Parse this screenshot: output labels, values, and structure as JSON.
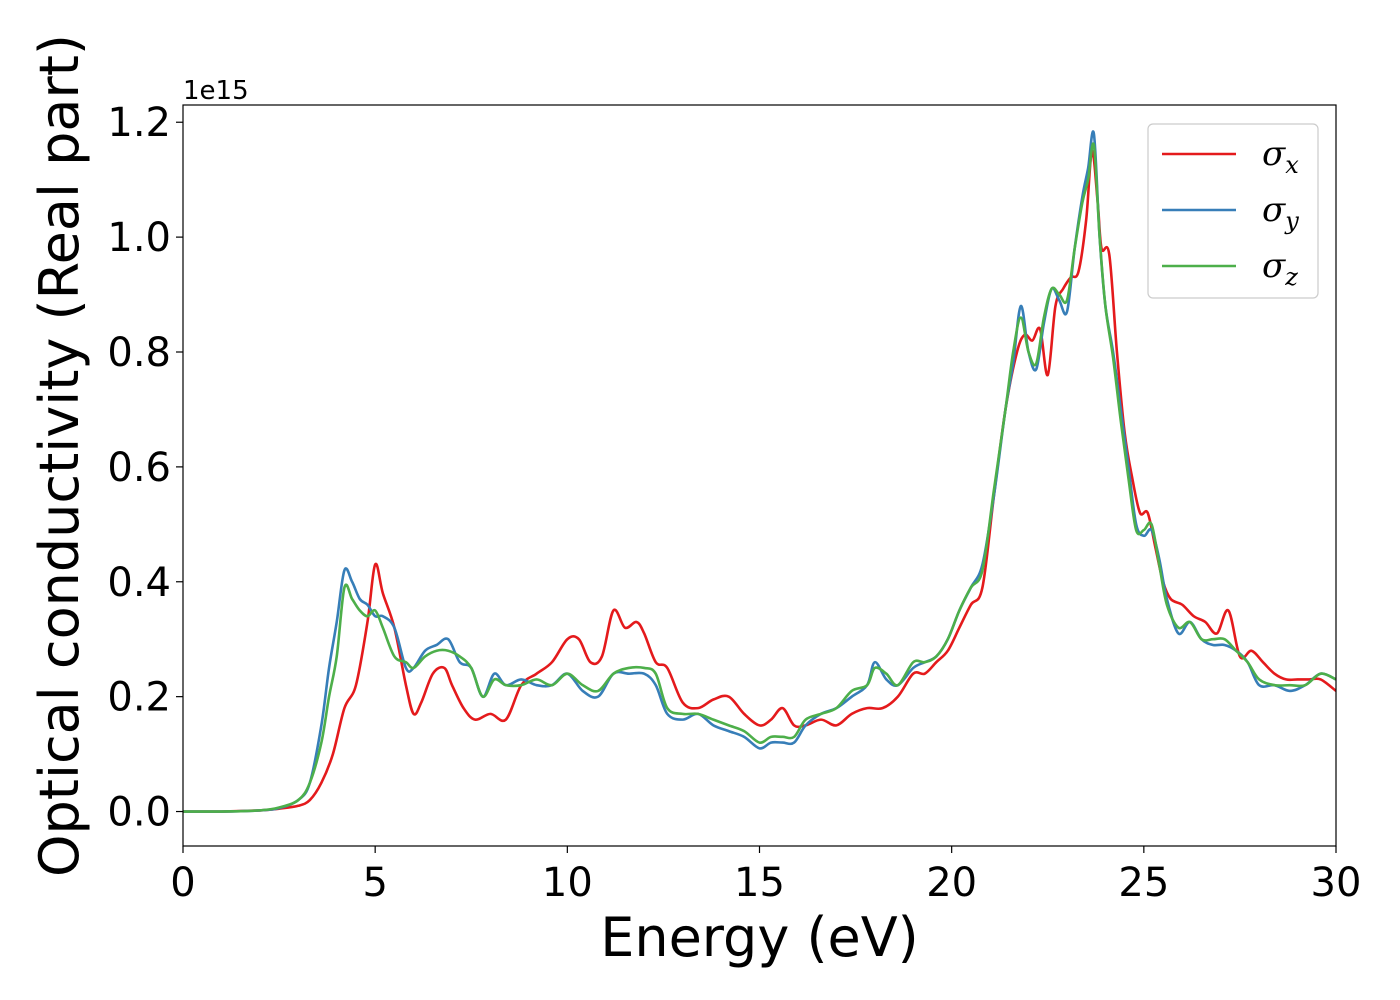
{
  "chart_data": {
    "type": "line",
    "xlabel": "Energy (eV)",
    "ylabel": "Optical conductivity (Real part)",
    "y_offset_label": "1e15",
    "xlim": [
      0,
      30
    ],
    "ylim": [
      -0.06,
      1.23
    ],
    "y_scale_factor": 1000000000000000.0,
    "x_ticks": [
      0,
      5,
      10,
      15,
      20,
      25,
      30
    ],
    "x_tick_labels": [
      "0",
      "5",
      "10",
      "15",
      "20",
      "25",
      "30"
    ],
    "y_ticks": [
      0.0,
      0.2,
      0.4,
      0.6,
      0.8,
      1.0,
      1.2
    ],
    "y_tick_labels": [
      "0.0",
      "0.2",
      "0.4",
      "0.6",
      "0.8",
      "1.0",
      "1.2"
    ],
    "grid": false,
    "legend": "top-right",
    "series": [
      {
        "name": "σx",
        "symbol": "σ",
        "subscript": "x",
        "color": "#e41a1c",
        "x": [
          0,
          1,
          2,
          2.5,
          3,
          3.3,
          3.6,
          3.9,
          4.2,
          4.5,
          4.8,
          5.0,
          5.2,
          5.5,
          5.8,
          6.0,
          6.2,
          6.5,
          6.8,
          7.0,
          7.3,
          7.6,
          8.0,
          8.4,
          8.8,
          9.2,
          9.6,
          10.0,
          10.3,
          10.6,
          10.9,
          11.2,
          11.5,
          11.8,
          12.0,
          12.3,
          12.6,
          13.0,
          13.4,
          13.8,
          14.2,
          14.6,
          15.0,
          15.3,
          15.6,
          15.9,
          16.2,
          16.6,
          17.0,
          17.4,
          17.8,
          18.2,
          18.6,
          19.0,
          19.3,
          19.6,
          19.9,
          20.2,
          20.5,
          20.8,
          21.1,
          21.4,
          21.7,
          21.9,
          22.1,
          22.3,
          22.5,
          22.7,
          22.9,
          23.1,
          23.3,
          23.5,
          23.65,
          23.8,
          23.9,
          24.1,
          24.3,
          24.5,
          24.7,
          24.9,
          25.1,
          25.3,
          25.5,
          25.7,
          26.0,
          26.3,
          26.6,
          26.9,
          27.2,
          27.5,
          27.8,
          28.1,
          28.4,
          28.7,
          29.0,
          29.3,
          29.6,
          30.0
        ],
        "y": [
          0.0,
          0.0,
          0.002,
          0.005,
          0.01,
          0.02,
          0.05,
          0.1,
          0.18,
          0.22,
          0.33,
          0.43,
          0.38,
          0.32,
          0.22,
          0.17,
          0.19,
          0.24,
          0.25,
          0.22,
          0.18,
          0.16,
          0.17,
          0.16,
          0.22,
          0.24,
          0.26,
          0.3,
          0.3,
          0.26,
          0.27,
          0.35,
          0.32,
          0.33,
          0.31,
          0.26,
          0.25,
          0.19,
          0.18,
          0.195,
          0.2,
          0.17,
          0.15,
          0.16,
          0.18,
          0.15,
          0.15,
          0.16,
          0.15,
          0.17,
          0.18,
          0.18,
          0.2,
          0.24,
          0.24,
          0.26,
          0.28,
          0.32,
          0.36,
          0.39,
          0.55,
          0.7,
          0.8,
          0.83,
          0.82,
          0.84,
          0.76,
          0.88,
          0.91,
          0.93,
          0.94,
          1.03,
          1.15,
          1.06,
          0.98,
          0.97,
          0.8,
          0.66,
          0.58,
          0.52,
          0.52,
          0.46,
          0.4,
          0.37,
          0.36,
          0.34,
          0.33,
          0.31,
          0.35,
          0.27,
          0.28,
          0.26,
          0.24,
          0.23,
          0.23,
          0.23,
          0.23,
          0.21
        ]
      },
      {
        "name": "σy",
        "symbol": "σ",
        "subscript": "y",
        "color": "#377eb8",
        "x": [
          0,
          1,
          2,
          2.5,
          3,
          3.3,
          3.6,
          3.8,
          4.0,
          4.2,
          4.4,
          4.6,
          4.8,
          5.0,
          5.2,
          5.5,
          5.8,
          6.0,
          6.3,
          6.6,
          6.9,
          7.2,
          7.5,
          7.8,
          8.1,
          8.4,
          8.8,
          9.2,
          9.6,
          10.0,
          10.4,
          10.8,
          11.2,
          11.6,
          12.0,
          12.3,
          12.6,
          13.0,
          13.4,
          13.8,
          14.2,
          14.6,
          15.0,
          15.3,
          15.6,
          15.9,
          16.2,
          16.6,
          17.0,
          17.4,
          17.8,
          18.0,
          18.3,
          18.6,
          19.0,
          19.3,
          19.6,
          19.9,
          20.2,
          20.5,
          20.8,
          21.1,
          21.4,
          21.6,
          21.8,
          22.0,
          22.2,
          22.4,
          22.6,
          22.8,
          23.0,
          23.2,
          23.4,
          23.55,
          23.7,
          23.85,
          24.0,
          24.2,
          24.4,
          24.6,
          24.8,
          25.0,
          25.2,
          25.4,
          25.6,
          25.9,
          26.2,
          26.5,
          26.8,
          27.1,
          27.4,
          27.7,
          28.0,
          28.4,
          28.8,
          29.2,
          29.6,
          30.0
        ],
        "y": [
          0.0,
          0.0,
          0.002,
          0.006,
          0.02,
          0.05,
          0.15,
          0.25,
          0.33,
          0.42,
          0.4,
          0.37,
          0.36,
          0.34,
          0.34,
          0.32,
          0.25,
          0.25,
          0.28,
          0.29,
          0.3,
          0.26,
          0.25,
          0.2,
          0.24,
          0.22,
          0.23,
          0.22,
          0.22,
          0.24,
          0.21,
          0.2,
          0.24,
          0.24,
          0.24,
          0.22,
          0.17,
          0.16,
          0.17,
          0.15,
          0.14,
          0.13,
          0.11,
          0.12,
          0.12,
          0.12,
          0.15,
          0.17,
          0.18,
          0.2,
          0.22,
          0.26,
          0.23,
          0.22,
          0.25,
          0.26,
          0.27,
          0.3,
          0.35,
          0.39,
          0.43,
          0.55,
          0.7,
          0.78,
          0.88,
          0.8,
          0.77,
          0.85,
          0.91,
          0.89,
          0.87,
          0.98,
          1.07,
          1.12,
          1.18,
          1.0,
          0.88,
          0.8,
          0.7,
          0.6,
          0.5,
          0.48,
          0.49,
          0.44,
          0.37,
          0.31,
          0.33,
          0.3,
          0.29,
          0.29,
          0.28,
          0.26,
          0.22,
          0.22,
          0.21,
          0.22,
          0.24,
          0.23
        ]
      },
      {
        "name": "σz",
        "symbol": "σ",
        "subscript": "z",
        "color": "#4daf4a",
        "x": [
          0,
          1,
          2,
          2.5,
          3,
          3.3,
          3.6,
          3.8,
          4.0,
          4.2,
          4.4,
          4.6,
          4.8,
          5.0,
          5.2,
          5.5,
          5.8,
          6.0,
          6.3,
          6.6,
          6.9,
          7.2,
          7.5,
          7.8,
          8.1,
          8.4,
          8.8,
          9.2,
          9.6,
          10.0,
          10.4,
          10.8,
          11.2,
          11.6,
          12.0,
          12.3,
          12.6,
          13.0,
          13.4,
          13.8,
          14.2,
          14.6,
          15.0,
          15.3,
          15.6,
          15.9,
          16.2,
          16.6,
          17.0,
          17.4,
          17.8,
          18.0,
          18.3,
          18.6,
          19.0,
          19.3,
          19.6,
          19.9,
          20.2,
          20.5,
          20.8,
          21.1,
          21.4,
          21.6,
          21.8,
          22.0,
          22.2,
          22.4,
          22.6,
          22.8,
          23.0,
          23.2,
          23.4,
          23.55,
          23.7,
          23.85,
          24.0,
          24.2,
          24.4,
          24.6,
          24.8,
          25.0,
          25.2,
          25.4,
          25.6,
          25.9,
          26.2,
          26.5,
          26.8,
          27.1,
          27.4,
          27.7,
          28.0,
          28.4,
          28.8,
          29.2,
          29.6,
          30.0
        ],
        "y": [
          0.0,
          0.0,
          0.002,
          0.007,
          0.02,
          0.05,
          0.12,
          0.2,
          0.27,
          0.39,
          0.37,
          0.35,
          0.34,
          0.35,
          0.32,
          0.27,
          0.26,
          0.25,
          0.27,
          0.28,
          0.28,
          0.27,
          0.25,
          0.2,
          0.23,
          0.22,
          0.22,
          0.23,
          0.22,
          0.24,
          0.22,
          0.21,
          0.24,
          0.25,
          0.25,
          0.24,
          0.18,
          0.17,
          0.17,
          0.16,
          0.15,
          0.14,
          0.12,
          0.13,
          0.13,
          0.13,
          0.16,
          0.17,
          0.18,
          0.21,
          0.22,
          0.25,
          0.24,
          0.22,
          0.26,
          0.26,
          0.27,
          0.3,
          0.35,
          0.39,
          0.42,
          0.56,
          0.7,
          0.8,
          0.86,
          0.8,
          0.78,
          0.86,
          0.91,
          0.9,
          0.89,
          0.98,
          1.06,
          1.1,
          1.16,
          1.0,
          0.88,
          0.79,
          0.68,
          0.58,
          0.49,
          0.49,
          0.5,
          0.43,
          0.36,
          0.32,
          0.33,
          0.3,
          0.3,
          0.3,
          0.28,
          0.26,
          0.23,
          0.22,
          0.22,
          0.22,
          0.24,
          0.23
        ]
      }
    ]
  }
}
